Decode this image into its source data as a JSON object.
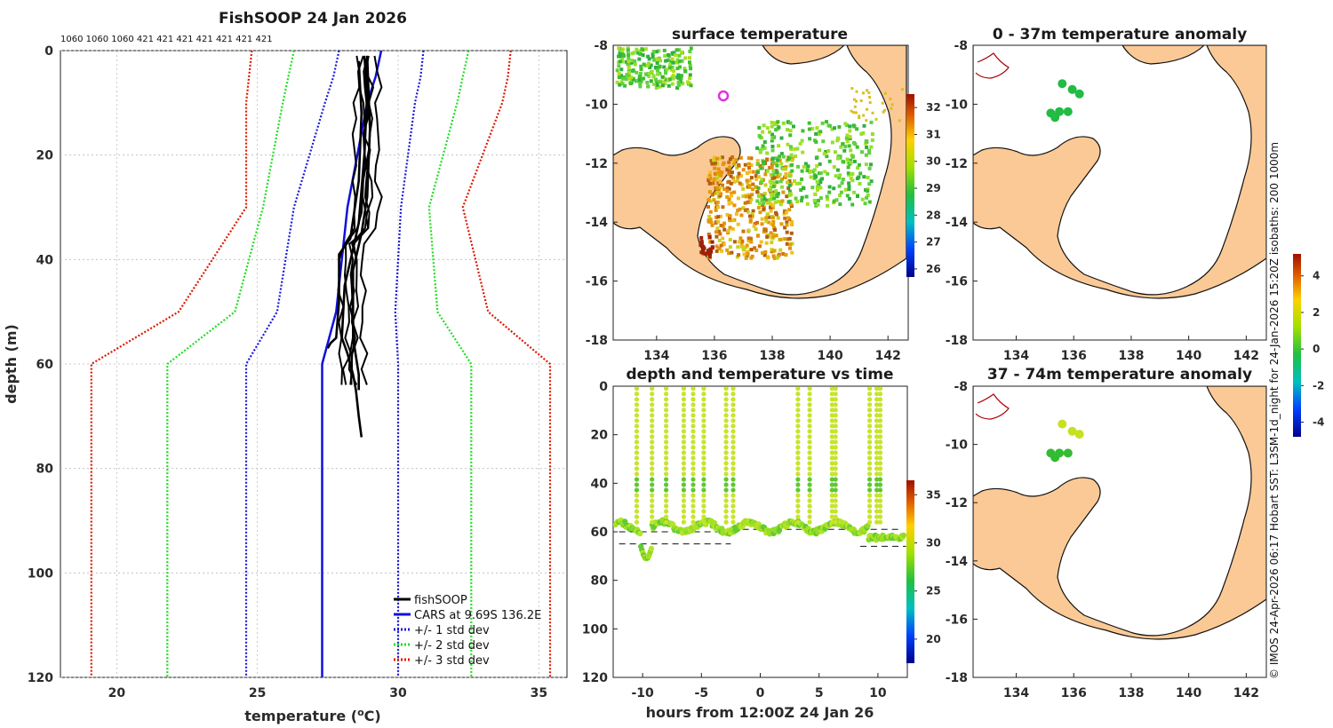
{
  "colors": {
    "cars": "#1010dd",
    "std1": "#1a1ad8",
    "std2": "#22dd22",
    "std3": "#dd1a00",
    "fish": "#000000",
    "land": "#fbc995",
    "anomaly_point": "#22bb44",
    "anomaly_point2": "#88cc22",
    "sst_point": "#d4e03a"
  },
  "profile": {
    "title": "FishSOOP 24 Jan 2026",
    "xlabel": "temperature (",
    "xlabel_sup": "o",
    "xlabel_end": "C)",
    "ylabel": "depth (m)",
    "xlim": [
      18,
      36
    ],
    "ylim": [
      0,
      120
    ],
    "xticks": [
      20,
      25,
      30,
      35
    ],
    "yticks": [
      0,
      20,
      40,
      60,
      80,
      100,
      120
    ],
    "top_label": "1060 1060 1060 421  421  421 421  421  421 421",
    "legend": [
      "fishSOOP",
      "CARS at 9.69S 136.2E",
      "+/- 1 std dev",
      "+/- 2 std dev",
      "+/- 3 std dev"
    ]
  },
  "chart_data": [
    {
      "type": "line",
      "title": "FishSOOP 24 Jan 2026",
      "xlabel": "temperature (oC)",
      "ylabel": "depth (m)",
      "xlim": [
        18,
        36
      ],
      "ylim": [
        0,
        120
      ],
      "series": [
        {
          "name": "CARS at 9.69S 136.2E",
          "points": [
            [
              29.4,
              0
            ],
            [
              29.2,
              5
            ],
            [
              28.9,
              10
            ],
            [
              28.2,
              30
            ],
            [
              27.8,
              50
            ],
            [
              27.3,
              60
            ],
            [
              27.3,
              120
            ]
          ]
        },
        {
          "name": "+/- 1 std dev upper",
          "points": [
            [
              30.9,
              0
            ],
            [
              30.8,
              5
            ],
            [
              30.6,
              10
            ],
            [
              30.1,
              30
            ],
            [
              29.9,
              50
            ],
            [
              30.0,
              60
            ],
            [
              30.0,
              120
            ]
          ]
        },
        {
          "name": "+/- 1 std dev lower",
          "points": [
            [
              27.9,
              0
            ],
            [
              27.7,
              5
            ],
            [
              27.4,
              10
            ],
            [
              26.3,
              30
            ],
            [
              25.7,
              50
            ],
            [
              24.6,
              60
            ],
            [
              24.6,
              120
            ]
          ]
        },
        {
          "name": "+/- 2 std dev upper",
          "points": [
            [
              32.5,
              0
            ],
            [
              32.3,
              5
            ],
            [
              32.1,
              10
            ],
            [
              31.1,
              30
            ],
            [
              31.4,
              50
            ],
            [
              32.6,
              60
            ],
            [
              32.6,
              120
            ]
          ]
        },
        {
          "name": "+/- 2 std dev lower",
          "points": [
            [
              26.3,
              0
            ],
            [
              26.1,
              5
            ],
            [
              25.9,
              10
            ],
            [
              25.2,
              30
            ],
            [
              24.2,
              50
            ],
            [
              21.8,
              60
            ],
            [
              21.8,
              120
            ]
          ]
        },
        {
          "name": "+/- 3 std dev upper",
          "points": [
            [
              34.0,
              0
            ],
            [
              33.9,
              5
            ],
            [
              33.7,
              10
            ],
            [
              32.3,
              30
            ],
            [
              33.2,
              50
            ],
            [
              35.4,
              60
            ],
            [
              35.4,
              120
            ]
          ]
        },
        {
          "name": "+/- 3 std dev lower",
          "points": [
            [
              24.8,
              0
            ],
            [
              24.7,
              5
            ],
            [
              24.6,
              10
            ],
            [
              24.6,
              30
            ],
            [
              22.2,
              50
            ],
            [
              19.1,
              60
            ],
            [
              19.1,
              120
            ]
          ]
        },
        {
          "name": "fishSOOP",
          "points": [
            [
              28.8,
              1
            ],
            [
              28.9,
              8
            ],
            [
              28.8,
              20
            ],
            [
              28.6,
              33
            ],
            [
              28.4,
              38
            ],
            [
              28.1,
              45
            ],
            [
              28.0,
              55
            ],
            [
              28.2,
              58
            ],
            [
              28.4,
              62
            ],
            [
              28.5,
              65
            ],
            [
              28.6,
              70
            ],
            [
              28.7,
              74
            ]
          ]
        },
        {
          "name": "fishSOOP b",
          "points": [
            [
              28.6,
              2
            ],
            [
              28.7,
              12
            ],
            [
              28.6,
              25
            ],
            [
              28.3,
              36
            ],
            [
              27.9,
              39
            ],
            [
              27.9,
              48
            ],
            [
              27.8,
              55
            ],
            [
              27.6,
              56
            ],
            [
              27.5,
              57
            ]
          ]
        },
        {
          "name": "fishSOOP c",
          "points": [
            [
              28.9,
              1
            ],
            [
              29.0,
              15
            ],
            [
              28.9,
              28
            ],
            [
              28.7,
              35
            ],
            [
              28.4,
              42
            ],
            [
              28.4,
              55
            ],
            [
              28.6,
              62
            ],
            [
              28.6,
              65
            ]
          ]
        }
      ]
    },
    {
      "type": "heatmap",
      "title": "surface temperature",
      "xticks": [
        134,
        136,
        138,
        140,
        142
      ],
      "yticks": [
        -8,
        -10,
        -12,
        -14,
        -16,
        -18
      ],
      "xlim": [
        132.5,
        142.7
      ],
      "ylim": [
        -18,
        -8
      ],
      "colorbar": {
        "ticks": [
          26,
          27,
          28,
          29,
          30,
          31,
          32
        ],
        "range": [
          25.7,
          32.5
        ]
      }
    },
    {
      "type": "scatter",
      "title": "depth and temperature vs time",
      "xlabel": "hours from 12:00Z 24 Jan 26",
      "xticks": [
        -10,
        -5,
        0,
        5,
        10
      ],
      "yticks": [
        0,
        20,
        40,
        60,
        80,
        100,
        120
      ],
      "xlim": [
        -12.5,
        12.5
      ],
      "ylim": [
        0,
        120
      ],
      "dives_hours": [
        -10.5,
        -9.2,
        -8.0,
        -6.5,
        -5.7,
        -4.8,
        -2.9,
        -2.3,
        3.2,
        4.2,
        6.1,
        6.4,
        9.3,
        9.9,
        10.2
      ],
      "colorbar": {
        "ticks": [
          20,
          25,
          30,
          35
        ],
        "range": [
          17.5,
          36.5
        ]
      }
    },
    {
      "type": "scatter",
      "title": "0 - 37m temperature anomaly",
      "xticks": [
        134,
        136,
        138,
        140,
        142
      ],
      "yticks": [
        -8,
        -10,
        -12,
        -14,
        -16,
        -18
      ],
      "points": [
        [
          135.6,
          -9.3
        ],
        [
          135.95,
          -9.5
        ],
        [
          136.2,
          -9.65
        ],
        [
          135.2,
          -10.3
        ],
        [
          135.35,
          -10.45
        ],
        [
          135.5,
          -10.25
        ],
        [
          135.8,
          -10.25
        ]
      ],
      "colorbar": {
        "ticks": [
          4,
          2,
          0,
          -2,
          -4
        ],
        "range": [
          -4.8,
          5.2
        ]
      }
    },
    {
      "type": "scatter",
      "title": "37 - 74m temperature anomaly",
      "xticks": [
        134,
        136,
        138,
        140,
        142
      ],
      "yticks": [
        -8,
        -10,
        -12,
        -14,
        -16,
        -18
      ],
      "points": [
        [
          135.6,
          -9.3
        ],
        [
          135.95,
          -9.55
        ],
        [
          136.2,
          -9.65
        ],
        [
          135.2,
          -10.3
        ],
        [
          135.35,
          -10.45
        ],
        [
          135.5,
          -10.3
        ],
        [
          135.8,
          -10.3
        ]
      ]
    }
  ],
  "maps": {
    "sst_title": "surface temperature",
    "time_title": "depth and temperature vs time",
    "time_xlabel": "hours from 12:00Z 24 Jan 26",
    "anom1_title": "0 - 37m temperature anomaly",
    "anom2_title": "37 - 74m temperature anomaly",
    "side_note": "© IMOS 24-Apr-2026 06:17 Hobart SST: L3SM-1d_night for 24-Jan-2026 15:20Z isobaths: 200  1000m"
  }
}
